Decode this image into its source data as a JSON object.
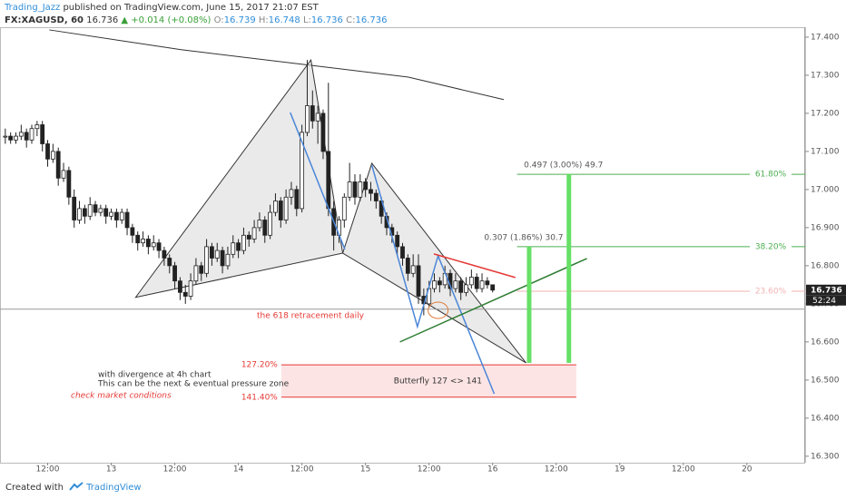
{
  "chart_data": {
    "type": "candlestick",
    "author": "Trading_Jazz",
    "published": "published on TradingView.com, June 15, 2017 21:07 EST",
    "symbol": "FX:XAGUSD, 60",
    "last_text": "16.736",
    "change": "▲ +0.014 (+0.08%)",
    "quote": [
      {
        "k": "O:",
        "v": "16.739"
      },
      {
        "k": "H:",
        "v": "16.748"
      },
      {
        "k": "L:",
        "v": "16.736"
      },
      {
        "k": "C:",
        "v": "16.736"
      }
    ],
    "footer": {
      "created": "Created with",
      "brand": "TradingView"
    },
    "xlim": [
      3,
      155
    ],
    "xticks": [
      {
        "value": 12,
        "label": "12:00"
      },
      {
        "value": 24,
        "label": "13"
      },
      {
        "value": 36,
        "label": "12:00"
      },
      {
        "value": 48,
        "label": "14"
      },
      {
        "value": 60,
        "label": "12:00"
      },
      {
        "value": 72,
        "label": "15"
      },
      {
        "value": 84,
        "label": "12:00"
      },
      {
        "value": 96,
        "label": "16"
      },
      {
        "value": 108,
        "label": "12:00"
      },
      {
        "value": 120,
        "label": "19"
      },
      {
        "value": 132,
        "label": "12:00"
      },
      {
        "value": 144,
        "label": "20"
      }
    ],
    "ylim": [
      16.283,
      17.426
    ],
    "yticks": [
      {
        "value": 17.4,
        "label": "17.400"
      },
      {
        "value": 17.3,
        "label": "17.300"
      },
      {
        "value": 17.2,
        "label": "17.200"
      },
      {
        "value": 17.1,
        "label": "17.100"
      },
      {
        "value": 17.0,
        "label": "17.000"
      },
      {
        "value": 16.9,
        "label": "16.900"
      },
      {
        "value": 16.8,
        "label": "16.800"
      },
      {
        "value": 16.7,
        "label": "16.700"
      },
      {
        "value": 16.6,
        "label": "16.600"
      },
      {
        "value": 16.5,
        "label": "16.500"
      },
      {
        "value": 16.4,
        "label": "16.400"
      },
      {
        "value": 16.3,
        "label": "16.300"
      }
    ],
    "x": [
      4,
      5,
      6,
      7,
      8,
      9,
      10,
      11,
      12,
      13,
      14,
      15,
      16,
      17,
      18,
      19,
      20,
      21,
      22,
      23,
      24,
      25,
      26,
      27,
      28,
      29,
      30,
      31,
      32,
      33,
      34,
      35,
      36,
      37,
      38,
      39,
      40,
      41,
      42,
      43,
      44,
      45,
      46,
      47,
      48,
      49,
      50,
      51,
      52,
      53,
      54,
      55,
      56,
      57,
      58,
      59,
      60,
      61,
      62,
      63,
      64,
      65,
      66,
      67,
      68,
      69,
      70,
      71,
      72,
      73,
      74,
      75,
      76,
      77,
      78,
      79,
      80,
      81,
      82,
      83,
      84,
      85,
      86,
      87,
      88,
      89,
      90,
      91,
      92,
      93,
      94,
      95,
      96
    ],
    "ohlc": [
      [
        17.14,
        17.16,
        17.12,
        17.14
      ],
      [
        17.14,
        17.15,
        17.12,
        17.13
      ],
      [
        17.13,
        17.15,
        17.12,
        17.14
      ],
      [
        17.14,
        17.17,
        17.13,
        17.15
      ],
      [
        17.15,
        17.16,
        17.11,
        17.13
      ],
      [
        17.13,
        17.17,
        17.12,
        17.16
      ],
      [
        17.16,
        17.18,
        17.14,
        17.17
      ],
      [
        17.17,
        17.18,
        17.1,
        17.12
      ],
      [
        17.12,
        17.13,
        17.06,
        17.08
      ],
      [
        17.08,
        17.12,
        17.07,
        17.1
      ],
      [
        17.1,
        17.11,
        17.01,
        17.03
      ],
      [
        17.03,
        17.07,
        17.02,
        17.05
      ],
      [
        17.05,
        17.06,
        16.96,
        16.98
      ],
      [
        16.98,
        17.0,
        16.9,
        16.92
      ],
      [
        16.92,
        16.97,
        16.91,
        16.95
      ],
      [
        16.95,
        16.96,
        16.91,
        16.93
      ],
      [
        16.93,
        16.98,
        16.92,
        16.96
      ],
      [
        16.96,
        16.97,
        16.93,
        16.94
      ],
      [
        16.94,
        16.96,
        16.93,
        16.95
      ],
      [
        16.95,
        16.96,
        16.91,
        16.93
      ],
      [
        16.93,
        16.95,
        16.92,
        16.94
      ],
      [
        16.94,
        16.95,
        16.9,
        16.92
      ],
      [
        16.92,
        16.95,
        16.91,
        16.94
      ],
      [
        16.94,
        16.95,
        16.88,
        16.9
      ],
      [
        16.9,
        16.91,
        16.86,
        16.88
      ],
      [
        16.88,
        16.89,
        16.84,
        16.86
      ],
      [
        16.86,
        16.89,
        16.85,
        16.87
      ],
      [
        16.87,
        16.88,
        16.83,
        16.85
      ],
      [
        16.85,
        16.88,
        16.84,
        16.86
      ],
      [
        16.86,
        16.87,
        16.82,
        16.84
      ],
      [
        16.84,
        16.85,
        16.8,
        16.82
      ],
      [
        16.82,
        16.83,
        16.78,
        16.8
      ],
      [
        16.8,
        16.81,
        16.74,
        16.76
      ],
      [
        16.76,
        16.77,
        16.71,
        16.73
      ],
      [
        16.73,
        16.75,
        16.7,
        16.72
      ],
      [
        16.72,
        16.78,
        16.71,
        16.76
      ],
      [
        16.76,
        16.82,
        16.75,
        16.8
      ],
      [
        16.8,
        16.81,
        16.76,
        16.78
      ],
      [
        16.78,
        16.87,
        16.77,
        16.85
      ],
      [
        16.85,
        16.86,
        16.8,
        16.82
      ],
      [
        16.82,
        16.86,
        16.81,
        16.84
      ],
      [
        16.84,
        16.85,
        16.78,
        16.8
      ],
      [
        16.8,
        16.85,
        16.79,
        16.83
      ],
      [
        16.83,
        16.88,
        16.82,
        16.86
      ],
      [
        16.86,
        16.87,
        16.82,
        16.84
      ],
      [
        16.84,
        16.9,
        16.83,
        16.88
      ],
      [
        16.88,
        16.89,
        16.85,
        16.87
      ],
      [
        16.87,
        16.92,
        16.86,
        16.9
      ],
      [
        16.9,
        16.94,
        16.89,
        16.92
      ],
      [
        16.92,
        16.93,
        16.86,
        16.88
      ],
      [
        16.88,
        16.96,
        16.87,
        16.94
      ],
      [
        16.94,
        16.99,
        16.93,
        16.97
      ],
      [
        16.97,
        16.98,
        16.9,
        16.92
      ],
      [
        16.92,
        17.0,
        16.91,
        16.98
      ],
      [
        16.98,
        17.02,
        16.96,
        17.0
      ],
      [
        17.0,
        17.01,
        16.93,
        16.95
      ],
      [
        16.95,
        17.17,
        16.94,
        17.15
      ],
      [
        17.15,
        17.34,
        17.14,
        17.22
      ],
      [
        17.22,
        17.26,
        17.16,
        17.18
      ],
      [
        17.18,
        17.22,
        17.12,
        17.2
      ],
      [
        17.2,
        17.21,
        17.08,
        17.1
      ],
      [
        17.1,
        17.28,
        16.93,
        16.95
      ],
      [
        16.95,
        16.97,
        16.84,
        16.88
      ],
      [
        16.88,
        16.93,
        16.86,
        16.92
      ],
      [
        16.92,
        16.99,
        16.9,
        16.98
      ],
      [
        16.98,
        17.07,
        16.97,
        17.02
      ],
      [
        17.02,
        17.04,
        16.96,
        16.98
      ],
      [
        16.98,
        17.04,
        16.97,
        17.02
      ],
      [
        17.02,
        17.03,
        16.98,
        17.0
      ],
      [
        17.0,
        17.02,
        16.97,
        16.99
      ],
      [
        16.99,
        17.0,
        16.95,
        16.97
      ],
      [
        16.97,
        16.98,
        16.91,
        16.93
      ],
      [
        16.93,
        16.94,
        16.88,
        16.9
      ],
      [
        16.9,
        16.91,
        16.86,
        16.88
      ],
      [
        16.88,
        16.89,
        16.83,
        16.85
      ],
      [
        16.85,
        16.86,
        16.8,
        16.82
      ],
      [
        16.82,
        16.83,
        16.76,
        16.78
      ],
      [
        16.78,
        16.83,
        16.77,
        16.8
      ],
      [
        16.8,
        16.83,
        16.7,
        16.72
      ],
      [
        16.72,
        16.74,
        16.67,
        16.7
      ],
      [
        16.7,
        16.76,
        16.69,
        16.74
      ],
      [
        16.74,
        16.78,
        16.73,
        16.76
      ],
      [
        16.76,
        16.77,
        16.73,
        16.75
      ],
      [
        16.75,
        16.8,
        16.74,
        16.78
      ],
      [
        16.78,
        16.79,
        16.72,
        16.74
      ],
      [
        16.74,
        16.78,
        16.73,
        16.76
      ],
      [
        16.76,
        16.77,
        16.71,
        16.73
      ],
      [
        16.73,
        16.77,
        16.72,
        16.75
      ],
      [
        16.75,
        16.79,
        16.74,
        16.77
      ],
      [
        16.77,
        16.78,
        16.73,
        16.74
      ],
      [
        16.74,
        16.78,
        16.73,
        16.76
      ],
      [
        16.76,
        16.77,
        16.74,
        16.75
      ],
      [
        16.75,
        16.75,
        16.73,
        16.736
      ]
    ],
    "up_color": "#ffffff",
    "down_color": "#222222",
    "last_price": 16.736,
    "countdown": "52:24",
    "moving_average": {
      "color": "#333333",
      "x": [
        12.3,
        37.2,
        61.7,
        80.1,
        98.1
      ],
      "values": [
        17.419,
        17.367,
        17.326,
        17.295,
        17.236
      ]
    },
    "patterns": [
      {
        "x": [
          28.6,
          61.7,
          67.7
        ],
        "values": [
          16.717,
          17.34,
          16.833
        ]
      },
      {
        "x": [
          67.7,
          73.2,
          102.3
        ],
        "values": [
          16.833,
          17.069,
          16.545
        ]
      }
    ],
    "blue_lines": [
      {
        "x": [
          57.8,
          68.1
        ],
        "values": [
          17.202,
          16.843
        ]
      },
      {
        "x": [
          73.2,
          81.8,
          85.7,
          96.3
        ],
        "values": [
          17.064,
          16.64,
          16.826,
          16.464
        ]
      }
    ],
    "red_line": {
      "x": [
        84.9,
        100.3
      ],
      "values": [
        16.831,
        16.769
      ]
    },
    "green_line": {
      "x": [
        78.5,
        113.8
      ],
      "values": [
        16.6,
        16.819
      ]
    },
    "fib_start": 100.6,
    "fib_levels": [
      {
        "price": 17.04,
        "label": "61.80%",
        "color": "#4caf50"
      },
      {
        "price": 16.85,
        "label": "38.20%",
        "color": "#4caf50"
      },
      {
        "price": 16.733,
        "label": "23.60%",
        "color": "#f2b3b3"
      }
    ],
    "zone": {
      "x": [
        56.1,
        111.8
      ],
      "top": 16.54,
      "bottom": 16.455,
      "top_label": "127.20%",
      "bottom_label": "141.40%",
      "label": "Butterfly 127 <> 141"
    },
    "projections": [
      {
        "x": 102.9,
        "from": 16.85,
        "to": 16.545,
        "label": "0.307 (1.86%) 30.7"
      },
      {
        "x": 110.4,
        "from": 17.04,
        "to": 16.545,
        "label": "0.497 (3.00%) 49.7"
      }
    ],
    "retracement": {
      "price": 16.686,
      "label": "the 618 retracement daily"
    },
    "circle": {
      "x": 85.7,
      "price": 16.683
    },
    "notes": [
      "with divergence at 4h chart",
      "This can be the next & eventual pressure zone"
    ],
    "warning": "check market conditions"
  }
}
